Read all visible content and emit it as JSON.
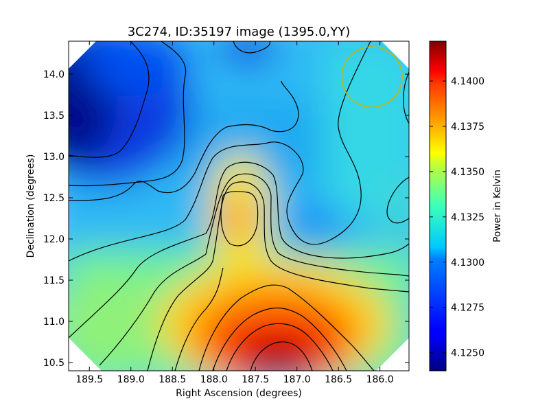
{
  "chart_data": {
    "type": "heatmap",
    "title": "3C274, ID:35197 image (1395.0,YY)",
    "xlabel": "Right Ascension (degrees)",
    "ylabel": "Declination (degrees)",
    "xlim": [
      189.75,
      185.65
    ],
    "ylim": [
      10.4,
      14.4
    ],
    "x_ticks": [
      "189.5",
      "189.0",
      "188.5",
      "188.0",
      "187.5",
      "187.0",
      "186.5",
      "186.0"
    ],
    "x_tick_values": [
      189.5,
      189.0,
      188.5,
      188.0,
      187.5,
      187.0,
      186.5,
      186.0
    ],
    "y_ticks": [
      "10.5",
      "11.0",
      "11.5",
      "12.0",
      "12.5",
      "13.0",
      "13.5",
      "14.0"
    ],
    "y_tick_values": [
      10.5,
      11.0,
      11.5,
      12.0,
      12.5,
      13.0,
      13.5,
      14.0
    ],
    "colorbar": {
      "label": "Power in Kelvin",
      "range": [
        4.124,
        4.1422
      ],
      "ticks": [
        "4.1250",
        "4.1275",
        "4.1300",
        "4.1325",
        "4.1350",
        "4.1375",
        "4.1400"
      ],
      "tick_values": [
        4.125,
        4.1275,
        4.13,
        4.1325,
        4.135,
        4.1375,
        4.14
      ],
      "colormap": "jet"
    },
    "features": [
      {
        "kind": "peak",
        "ra": 187.25,
        "dec": 10.5,
        "value": 4.1422
      },
      {
        "kind": "local_max",
        "ra": 187.7,
        "dec": 12.2,
        "value": 4.137
      },
      {
        "kind": "minimum",
        "ra": 189.8,
        "dec": 13.5,
        "value": 4.124
      },
      {
        "kind": "marker_circle",
        "ra": 186.12,
        "dec": 13.95,
        "color": "#c8b400"
      }
    ],
    "grid": false,
    "contours": true
  }
}
